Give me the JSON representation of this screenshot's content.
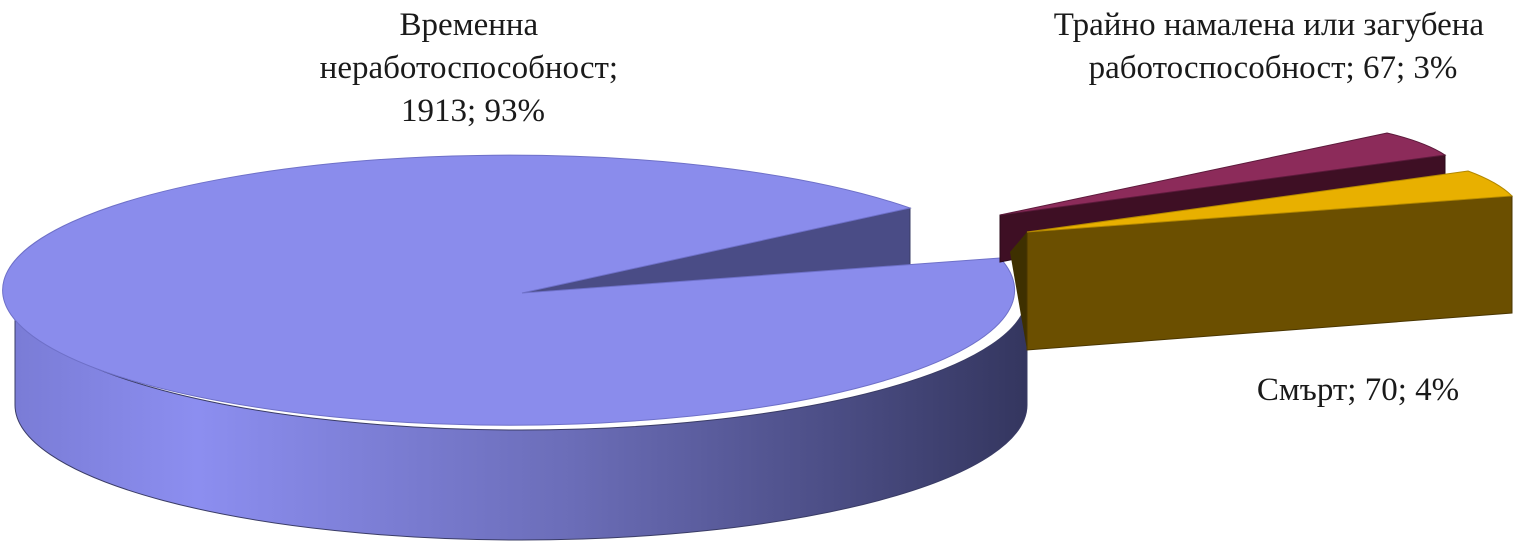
{
  "chart_data": {
    "type": "pie",
    "three_d": true,
    "exploded": true,
    "title": "",
    "slices": [
      {
        "name": "Временна неработоспособност",
        "value": 1913,
        "percent": "93%",
        "color": "#8a8cec",
        "label_lines": [
          "Временна",
          "неработоспособност;",
          "1913; 93%"
        ]
      },
      {
        "name": "Трайно намалена или загубена работоспособност",
        "value": 67,
        "percent": "3%",
        "color": "#8c2b5a",
        "label_lines": [
          "Трайно намалена или загубена",
          "работоспособност; 67; 3%"
        ]
      },
      {
        "name": "Смърт",
        "value": 70,
        "percent": "4%",
        "color": "#e8b000",
        "label_lines": [
          "Смърт; 70; 4%"
        ]
      }
    ]
  }
}
